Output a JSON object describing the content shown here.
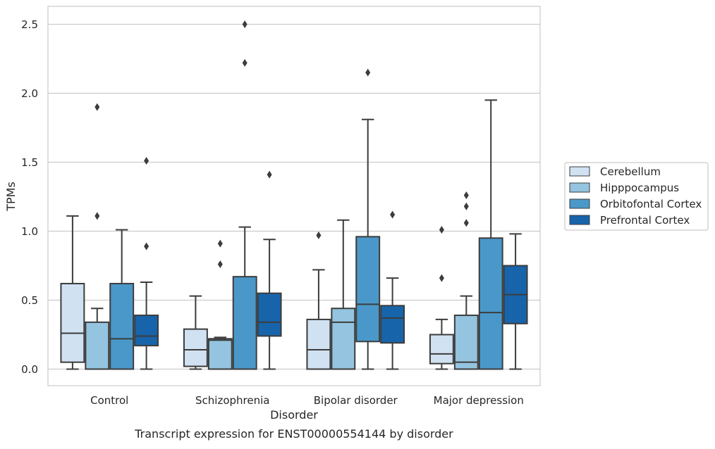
{
  "chart_data": {
    "type": "box",
    "title": "",
    "caption": "Transcript expression for ENST00000554144 by disorder",
    "xlabel": "Disorder",
    "ylabel": "TPMs",
    "ylim": [
      -0.12,
      2.63
    ],
    "yticks": [
      0.0,
      0.5,
      1.0,
      1.5,
      2.0,
      2.5
    ],
    "ytick_labels": [
      "0.0",
      "0.5",
      "1.0",
      "1.5",
      "2.0",
      "2.5"
    ],
    "grid": "horizontal",
    "legend_position": "right",
    "categories": [
      "Control",
      "Schizophrenia",
      "Bipolar disorder",
      "Major depression"
    ],
    "series": [
      {
        "name": "Cerebellum",
        "color": "#d0e1f2",
        "boxes": [
          {
            "whisker_low": 0.0,
            "q1": 0.05,
            "median": 0.26,
            "q3": 0.62,
            "whisker_high": 1.11,
            "outliers": []
          },
          {
            "whisker_low": 0.0,
            "q1": 0.02,
            "median": 0.14,
            "q3": 0.29,
            "whisker_high": 0.53,
            "outliers": []
          },
          {
            "whisker_low": 0.0,
            "q1": 0.0,
            "median": 0.14,
            "q3": 0.36,
            "whisker_high": 0.72,
            "outliers": [
              0.97
            ]
          },
          {
            "whisker_low": 0.0,
            "q1": 0.04,
            "median": 0.11,
            "q3": 0.25,
            "whisker_high": 0.36,
            "outliers": [
              0.66,
              1.01
            ]
          }
        ]
      },
      {
        "name": "Hipppocampus",
        "color": "#94c4df",
        "boxes": [
          {
            "whisker_low": 0.0,
            "q1": 0.0,
            "median": 0.0,
            "q3": 0.34,
            "whisker_high": 0.44,
            "outliers": [
              1.11,
              1.9
            ]
          },
          {
            "whisker_low": 0.0,
            "q1": 0.0,
            "median": 0.21,
            "q3": 0.22,
            "whisker_high": 0.23,
            "outliers": [
              0.76,
              0.91
            ]
          },
          {
            "whisker_low": 0.0,
            "q1": 0.0,
            "median": 0.34,
            "q3": 0.44,
            "whisker_high": 1.08,
            "outliers": []
          },
          {
            "whisker_low": 0.0,
            "q1": 0.0,
            "median": 0.05,
            "q3": 0.39,
            "whisker_high": 0.53,
            "outliers": [
              1.06,
              1.18,
              1.26
            ]
          }
        ]
      },
      {
        "name": "Orbitofontal Cortex",
        "color": "#4a98c9",
        "boxes": [
          {
            "whisker_low": 0.0,
            "q1": 0.0,
            "median": 0.22,
            "q3": 0.62,
            "whisker_high": 1.01,
            "outliers": []
          },
          {
            "whisker_low": 0.0,
            "q1": 0.0,
            "median": 0.0,
            "q3": 0.67,
            "whisker_high": 1.03,
            "outliers": [
              2.22,
              2.5
            ]
          },
          {
            "whisker_low": 0.0,
            "q1": 0.2,
            "median": 0.47,
            "q3": 0.96,
            "whisker_high": 1.81,
            "outliers": [
              2.15
            ]
          },
          {
            "whisker_low": 0.0,
            "q1": 0.0,
            "median": 0.41,
            "q3": 0.95,
            "whisker_high": 1.95,
            "outliers": []
          }
        ]
      },
      {
        "name": "Prefrontal Cortex",
        "color": "#1764ab",
        "boxes": [
          {
            "whisker_low": 0.0,
            "q1": 0.17,
            "median": 0.24,
            "q3": 0.39,
            "whisker_high": 0.63,
            "outliers": [
              0.89,
              1.51
            ]
          },
          {
            "whisker_low": 0.0,
            "q1": 0.24,
            "median": 0.34,
            "q3": 0.55,
            "whisker_high": 0.94,
            "outliers": [
              1.41
            ]
          },
          {
            "whisker_low": 0.0,
            "q1": 0.19,
            "median": 0.37,
            "q3": 0.46,
            "whisker_high": 0.66,
            "outliers": [
              1.12
            ]
          },
          {
            "whisker_low": 0.0,
            "q1": 0.33,
            "median": 0.54,
            "q3": 0.75,
            "whisker_high": 0.98,
            "outliers": []
          }
        ]
      }
    ]
  }
}
